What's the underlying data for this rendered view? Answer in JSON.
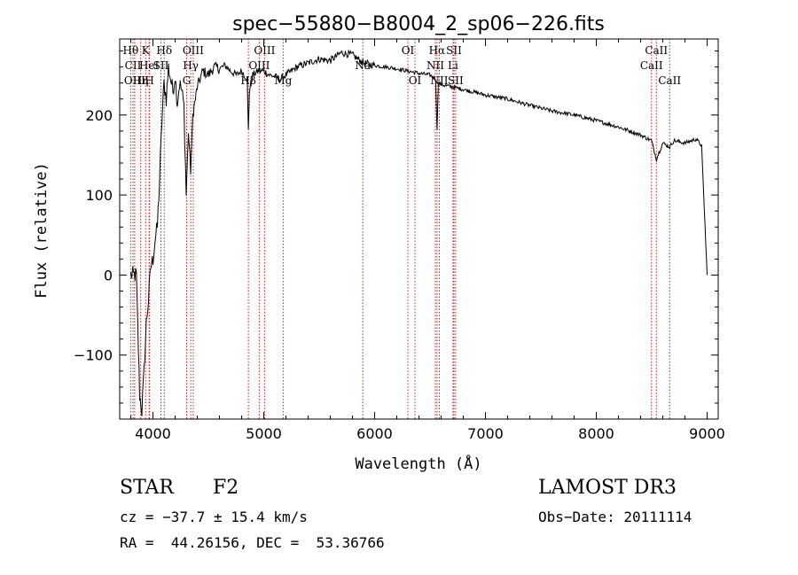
{
  "chart_data": {
    "type": "line",
    "title": "spec−55880−B8004_2_sp06−226.fits",
    "xlabel": "Wavelength (Å)",
    "ylabel": "Flux (relative)",
    "xlim": [
      3700,
      9100
    ],
    "ylim": [
      -180,
      295
    ],
    "x_ticks": [
      4000,
      5000,
      6000,
      7000,
      8000,
      9000
    ],
    "y_ticks": [
      -100,
      0,
      100,
      200
    ],
    "y_tick_labels": [
      "−100",
      "0",
      "100",
      "200"
    ],
    "grid": false,
    "series": [
      {
        "name": "flux",
        "x": [
          3800,
          3850,
          3880,
          3900,
          3920,
          3940,
          3960,
          3980,
          4000,
          4020,
          4040,
          4060,
          4080,
          4100,
          4120,
          4140,
          4160,
          4180,
          4200,
          4220,
          4240,
          4260,
          4280,
          4300,
          4320,
          4340,
          4360,
          4400,
          4450,
          4500,
          4550,
          4600,
          4650,
          4700,
          4750,
          4800,
          4850,
          4861,
          4870,
          4900,
          4950,
          5000,
          5050,
          5100,
          5150,
          5200,
          5300,
          5400,
          5500,
          5600,
          5700,
          5800,
          5850,
          5900,
          6000,
          6100,
          6200,
          6300,
          6400,
          6500,
          6550,
          6563,
          6575,
          6600,
          6700,
          6800,
          7000,
          7200,
          7400,
          7600,
          7800,
          8000,
          8200,
          8400,
          8498,
          8542,
          8600,
          8662,
          8700,
          8800,
          8900,
          8950,
          9000
        ],
        "y": [
          0,
          0,
          -150,
          -170,
          -120,
          -60,
          -30,
          10,
          20,
          45,
          60,
          120,
          190,
          240,
          220,
          260,
          245,
          230,
          250,
          215,
          240,
          230,
          210,
          100,
          180,
          130,
          200,
          235,
          255,
          250,
          260,
          258,
          262,
          255,
          250,
          255,
          245,
          180,
          230,
          250,
          255,
          255,
          250,
          248,
          245,
          250,
          260,
          265,
          270,
          268,
          278,
          275,
          270,
          265,
          262,
          260,
          258,
          255,
          252,
          250,
          245,
          180,
          240,
          238,
          235,
          232,
          225,
          220,
          212,
          205,
          200,
          193,
          185,
          175,
          168,
          145,
          165,
          160,
          168,
          165,
          170,
          162,
          0
        ]
      }
    ],
    "lines": [
      {
        "x": 3799,
        "labels": [
          "Hθ"
        ],
        "row": 0
      },
      {
        "x": 3820,
        "labels": [
          "CII"
        ],
        "row": 1
      },
      {
        "x": 3835,
        "labels": [
          "OIII"
        ],
        "row": 2
      },
      {
        "x": 3889,
        "labels": [
          "Hη"
        ],
        "row": 2
      },
      {
        "x": 3934,
        "labels": [
          "K"
        ],
        "row": 0
      },
      {
        "x": 3965,
        "labels": [
          "HeI"
        ],
        "row": 1
      },
      {
        "x": 3969,
        "labels": [
          "H"
        ],
        "row": 2
      },
      {
        "x": 4072,
        "labels": [
          "SII"
        ],
        "row": 1
      },
      {
        "x": 4102,
        "labels": [
          "Hδ"
        ],
        "row": 0
      },
      {
        "x": 4304,
        "labels": [
          "G"
        ],
        "row": 2
      },
      {
        "x": 4341,
        "labels": [
          "Hγ"
        ],
        "row": 1
      },
      {
        "x": 4363,
        "labels": [
          "OIII"
        ],
        "row": 0
      },
      {
        "x": 4861,
        "labels": [
          "Hβ"
        ],
        "row": 2
      },
      {
        "x": 4959,
        "labels": [
          "OIII"
        ],
        "row": 1
      },
      {
        "x": 5007,
        "labels": [
          "OIII"
        ],
        "row": 0
      },
      {
        "x": 5175,
        "labels": [
          "Mg"
        ],
        "row": 2
      },
      {
        "x": 5893,
        "labels": [
          "Na"
        ],
        "row": 1
      },
      {
        "x": 6300,
        "labels": [
          "OI"
        ],
        "row": 0
      },
      {
        "x": 6364,
        "labels": [
          "OI"
        ],
        "row": 2
      },
      {
        "x": 6548,
        "labels": [
          "NII"
        ],
        "row": 1
      },
      {
        "x": 6563,
        "labels": [
          "Hα"
        ],
        "row": 0
      },
      {
        "x": 6584,
        "labels": [
          "NII"
        ],
        "row": 2
      },
      {
        "x": 6707,
        "labels": [
          "Li"
        ],
        "row": 1
      },
      {
        "x": 6716,
        "labels": [
          "SII"
        ],
        "row": 0
      },
      {
        "x": 6731,
        "labels": [
          "SII"
        ],
        "row": 2
      },
      {
        "x": 8498,
        "labels": [
          "CaII"
        ],
        "row": 1
      },
      {
        "x": 8542,
        "labels": [
          "CaII"
        ],
        "row": 0
      },
      {
        "x": 8662,
        "labels": [
          "CaII"
        ],
        "row": 2
      }
    ]
  },
  "info": {
    "class_label": "STAR",
    "subclass": "F2",
    "survey": "LAMOST DR3",
    "cz": "cz = −37.7 ± 15.4 km/s",
    "obs_date": "Obs−Date: 20111114",
    "coords": "RA =  44.26156, DEC =  53.36766"
  }
}
